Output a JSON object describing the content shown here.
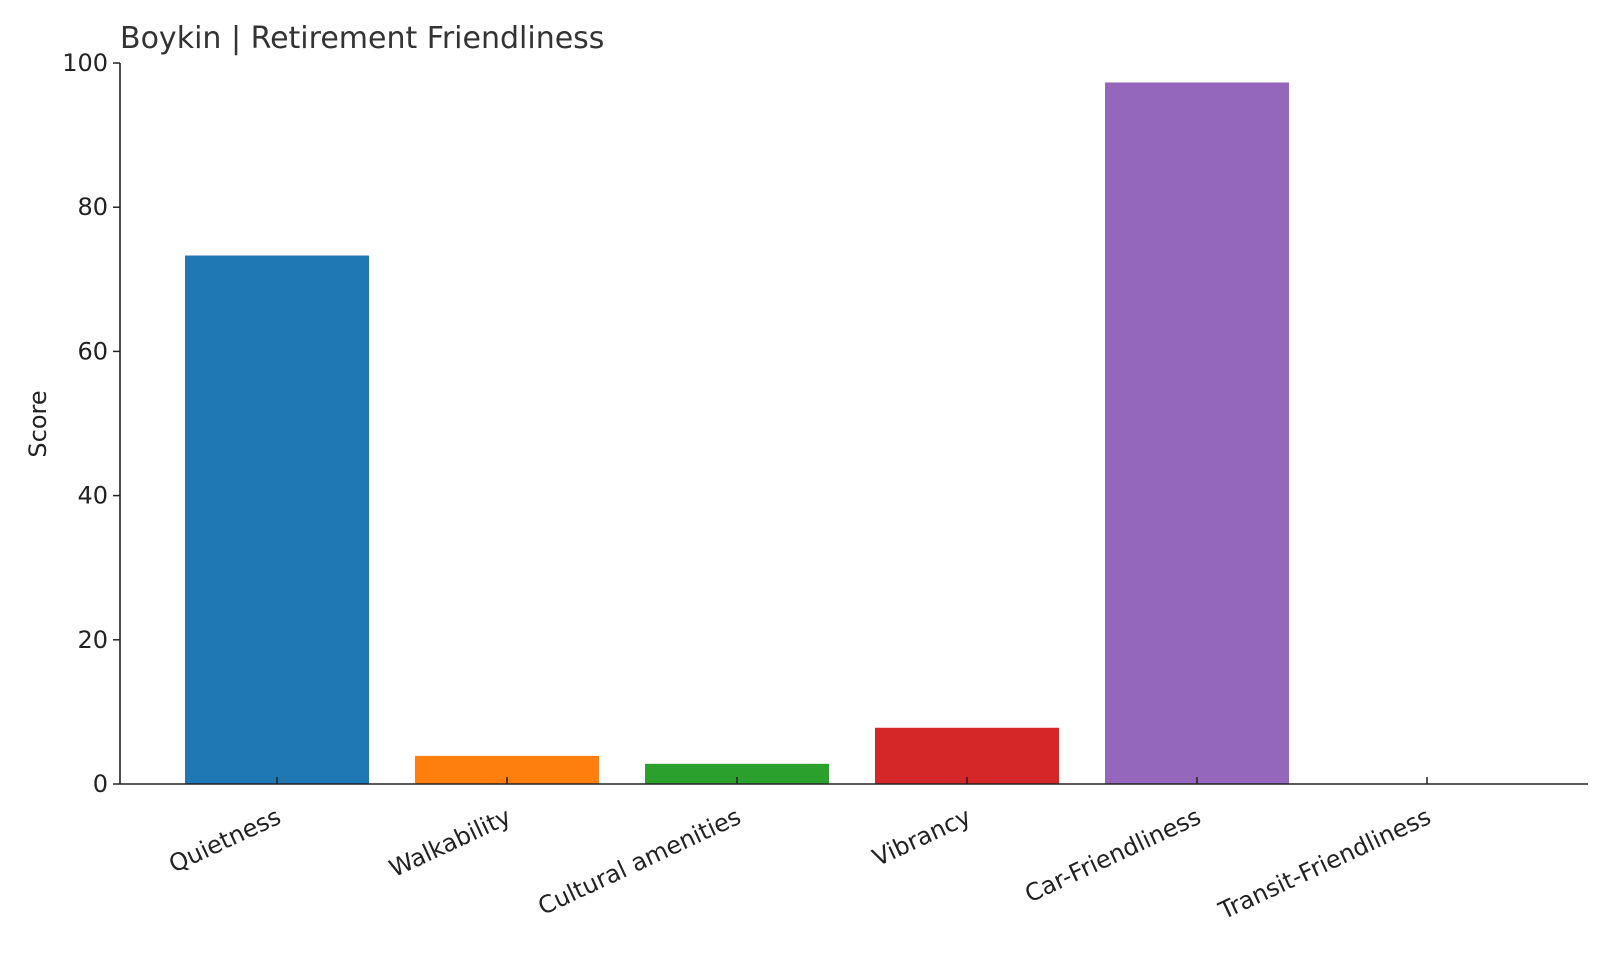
{
  "chart_data": {
    "type": "bar",
    "title": "Boykin | Retirement Friendliness",
    "xlabel": "",
    "ylabel": "Score",
    "ylim": [
      0,
      100
    ],
    "yticks": [
      0,
      20,
      40,
      60,
      80,
      100
    ],
    "categories": [
      "Quietness",
      "Walkability",
      "Cultural amenities",
      "Vibrancy",
      "Car-Friendliness",
      "Transit-Friendliness"
    ],
    "values": [
      73.3,
      3.9,
      2.8,
      7.8,
      97.3,
      0
    ],
    "colors": [
      "#1f77b4",
      "#ff7f0e",
      "#2ca02c",
      "#d62728",
      "#9467bd",
      "#8c564b"
    ],
    "grid": false,
    "legend": "none"
  }
}
